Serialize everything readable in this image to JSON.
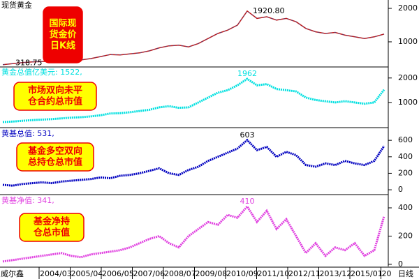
{
  "chart_data": [
    {
      "type": "line",
      "label": "现货黄金",
      "box": [
        "国际现",
        "货金价",
        "日K线"
      ],
      "box_style": "red",
      "color": "#c01818",
      "values": [
        318.75,
        350,
        380,
        400,
        410,
        420,
        440,
        430,
        460,
        500,
        560,
        620,
        610,
        640,
        670,
        730,
        820,
        880,
        900,
        850,
        950,
        1100,
        1250,
        1350,
        1500,
        1920.8,
        1700,
        1750,
        1650,
        1700,
        1600,
        1400,
        1300,
        1250,
        1280,
        1200,
        1150,
        1100,
        1150,
        1230
      ],
      "value_labels": [
        "318.75",
        null,
        null,
        null,
        null,
        null,
        null,
        null,
        null,
        null,
        null,
        null,
        null,
        null,
        null,
        null,
        null,
        null,
        null,
        null,
        null,
        null,
        null,
        null,
        null,
        "1920.80",
        null,
        null,
        null,
        null,
        null,
        null,
        null,
        null,
        null,
        null,
        null,
        null,
        null,
        null
      ],
      "ylim": [
        270,
        2250
      ],
      "yticks": [
        1000,
        2000
      ]
    },
    {
      "type": "line",
      "label": "黄金总值亿美元: 1522,",
      "box": [
        "市场双向未平",
        "仓合约总市值"
      ],
      "box_style": "yellow",
      "color": "#00e0e0",
      "values": [
        200,
        220,
        250,
        280,
        300,
        320,
        350,
        380,
        400,
        430,
        480,
        550,
        560,
        600,
        650,
        700,
        800,
        850,
        780,
        800,
        1000,
        1200,
        1400,
        1500,
        1700,
        1962,
        1700,
        1750,
        1550,
        1500,
        1450,
        1200,
        1100,
        1050,
        1000,
        1050,
        1000,
        950,
        1000,
        1522
      ],
      "value_labels": [
        null,
        null,
        null,
        null,
        null,
        null,
        null,
        null,
        null,
        null,
        null,
        null,
        null,
        null,
        null,
        null,
        null,
        null,
        null,
        null,
        null,
        null,
        null,
        null,
        null,
        "1962",
        null,
        null,
        null,
        null,
        null,
        null,
        null,
        null,
        null,
        null,
        null,
        null,
        null,
        null
      ],
      "ylim": [
        0,
        2450
      ],
      "yticks": [
        1000,
        2000
      ]
    },
    {
      "type": "line",
      "label": "黄基总值: 531,",
      "box": [
        "基金多空双向",
        "总持仓总市值"
      ],
      "box_style": "yellow",
      "color": "#0000c0",
      "values": [
        60,
        50,
        70,
        80,
        90,
        80,
        100,
        110,
        120,
        130,
        150,
        140,
        170,
        180,
        200,
        230,
        260,
        200,
        180,
        240,
        280,
        350,
        400,
        450,
        500,
        603,
        480,
        520,
        400,
        460,
        420,
        300,
        280,
        320,
        300,
        350,
        320,
        300,
        350,
        531
      ],
      "value_labels": [
        null,
        null,
        null,
        null,
        null,
        null,
        null,
        null,
        null,
        null,
        null,
        null,
        null,
        null,
        null,
        null,
        null,
        null,
        null,
        null,
        null,
        null,
        null,
        null,
        null,
        "603",
        null,
        null,
        null,
        null,
        null,
        null,
        null,
        null,
        null,
        null,
        null,
        null,
        null,
        null
      ],
      "ylim": [
        -50,
        745
      ],
      "yticks": [
        0,
        200,
        400,
        600
      ]
    },
    {
      "type": "line",
      "label": "黄基净值: 341,",
      "box": [
        "基金净持",
        "仓总市值"
      ],
      "box_style": "yellow",
      "color": "#e040e0",
      "values": [
        20,
        30,
        40,
        50,
        60,
        70,
        80,
        60,
        50,
        70,
        80,
        90,
        100,
        120,
        150,
        180,
        200,
        150,
        120,
        200,
        250,
        300,
        280,
        350,
        330,
        410,
        300,
        380,
        250,
        320,
        200,
        80,
        150,
        60,
        120,
        100,
        150,
        60,
        100,
        341
      ],
      "value_labels": [
        null,
        null,
        null,
        null,
        null,
        null,
        null,
        null,
        null,
        null,
        null,
        null,
        null,
        null,
        null,
        null,
        null,
        null,
        null,
        null,
        null,
        null,
        null,
        null,
        null,
        "410",
        null,
        null,
        null,
        null,
        null,
        null,
        null,
        null,
        null,
        null,
        null,
        null,
        null,
        null
      ],
      "ylim": [
        -15,
        489
      ],
      "yticks": [
        0,
        200,
        400
      ]
    }
  ],
  "x_axis": {
    "left": "威尔鑫",
    "labels": [
      "2004/03",
      "2005/04",
      "2006/05",
      "2007/06",
      "2008/07",
      "2009/08",
      "2010/09",
      "2011/10",
      "2012/11",
      "2013/12",
      "2015/01",
      "20"
    ],
    "right": "日线"
  }
}
